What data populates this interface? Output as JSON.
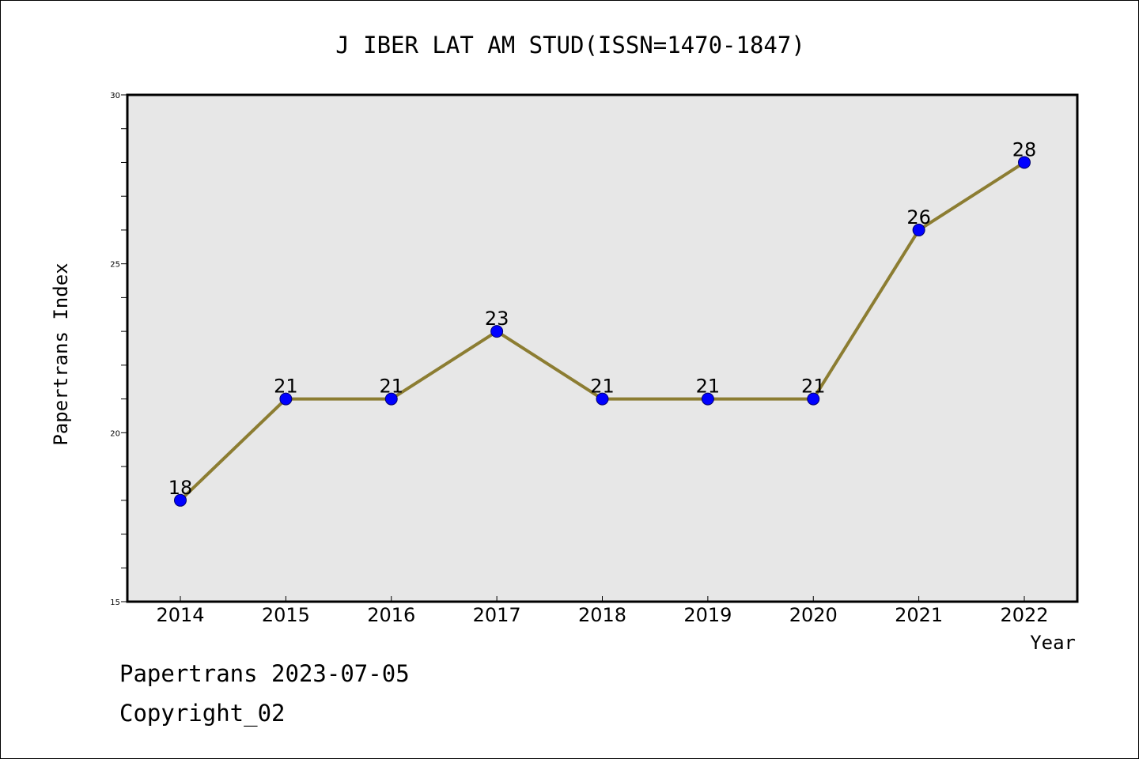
{
  "chart_data": {
    "type": "line",
    "title": "J IBER LAT AM STUD(ISSN=1470-1847)",
    "xlabel": "Year",
    "ylabel": "Papertrans Index",
    "categories": [
      "2014",
      "2015",
      "2016",
      "2017",
      "2018",
      "2019",
      "2020",
      "2021",
      "2022"
    ],
    "series": [
      {
        "values": [
          18,
          21,
          21,
          23,
          21,
          21,
          21,
          26,
          28
        ]
      }
    ],
    "ylim": [
      15,
      30
    ],
    "yticks": [
      15,
      20,
      25,
      30
    ],
    "grid": false,
    "data_labels": true,
    "colors": {
      "line": "#8c7d32",
      "marker": "#0000ff",
      "marker_edge": "#00006e",
      "plot_background": "#e7e7e7",
      "axes": "#000000"
    }
  },
  "footer": {
    "line1": "Papertrans 2023-07-05",
    "line2": "Copyright_02"
  }
}
